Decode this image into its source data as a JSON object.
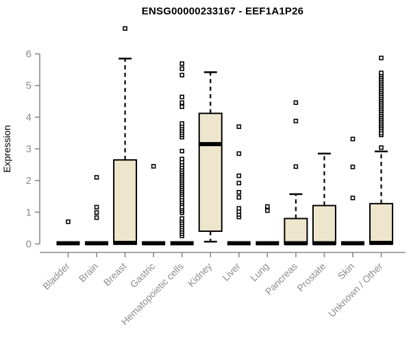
{
  "chart_data": {
    "type": "boxplot",
    "title": "ENSG00000233167 - EEF1A1P26",
    "ylabel": "Expression",
    "ylim": [
      0,
      6
    ],
    "yticks": [
      0,
      1,
      2,
      3,
      4,
      5,
      6
    ],
    "grid": false,
    "legend": false,
    "categories": [
      "Bladder",
      "Brain",
      "Breast",
      "Gastric",
      "Hematopoietic cells",
      "Kidney",
      "Liver",
      "Lung",
      "Pancreas",
      "Prostate",
      "Skin",
      "Unknown / Other"
    ],
    "colors": {
      "box_fill": "#EDE6CD",
      "box_border": "#000000",
      "median": "#000000",
      "whisker": "#000000",
      "outlier_stroke": "#000000",
      "outlier_fill": "#FFFFFF",
      "axis": "#888888",
      "tick_label": "#8C8C8C",
      "title": "#000000",
      "background": "#FFFFFF"
    },
    "boxes": [
      {
        "category": "Bladder",
        "q1": 0,
        "median": 0.02,
        "q3": 0,
        "whisker_low": 0,
        "whisker_high": 0,
        "outliers": [
          0.7
        ]
      },
      {
        "category": "Brain",
        "q1": 0,
        "median": 0.02,
        "q3": 0,
        "whisker_low": 0,
        "whisker_high": 0,
        "outliers": [
          0.83,
          0.99,
          1.16,
          2.1
        ]
      },
      {
        "category": "Breast",
        "q1": 0,
        "median": 0.03,
        "q3": 2.65,
        "whisker_low": 0,
        "whisker_high": 5.85,
        "outliers": [
          6.8
        ]
      },
      {
        "category": "Gastric",
        "q1": 0,
        "median": 0.02,
        "q3": 0,
        "whisker_low": 0,
        "whisker_high": 0,
        "outliers": [
          2.45
        ]
      },
      {
        "category": "Hematopoietic cells",
        "q1": 0,
        "median": 0.02,
        "q3": 0,
        "whisker_low": 0,
        "whisker_high": 0,
        "outliers": [
          0.25,
          0.32,
          0.39,
          0.46,
          0.53,
          0.6,
          0.67,
          0.74,
          0.8,
          0.98,
          1.04,
          1.1,
          1.16,
          1.27,
          1.33,
          1.4,
          1.48,
          1.56,
          1.62,
          1.68,
          1.74,
          1.8,
          1.86,
          1.92,
          1.98,
          2.04,
          2.1,
          2.16,
          2.22,
          2.28,
          2.35,
          2.42,
          2.5,
          2.58,
          2.68,
          2.93,
          3.37,
          3.44,
          3.51,
          3.58,
          3.65,
          3.72,
          3.8,
          4.33,
          4.46,
          4.64,
          5.33,
          5.53,
          5.69
        ]
      },
      {
        "category": "Kidney",
        "q1": 0.4,
        "median": 3.15,
        "q3": 4.12,
        "whisker_low": 0.07,
        "whisker_high": 5.42,
        "outliers": []
      },
      {
        "category": "Liver",
        "q1": 0,
        "median": 0.02,
        "q3": 0,
        "whisker_low": 0,
        "whisker_high": 0,
        "outliers": [
          0.85,
          0.93,
          1.02,
          1.12,
          1.47,
          1.63,
          1.92,
          2.15,
          2.85,
          3.7
        ]
      },
      {
        "category": "Lung",
        "q1": 0,
        "median": 0.02,
        "q3": 0,
        "whisker_low": 0,
        "whisker_high": 0,
        "outliers": [
          1.05,
          1.18
        ]
      },
      {
        "category": "Pancreas",
        "q1": 0,
        "median": 0.02,
        "q3": 0.8,
        "whisker_low": 0,
        "whisker_high": 1.57,
        "outliers": [
          2.44,
          3.88,
          4.46
        ]
      },
      {
        "category": "Prostate",
        "q1": 0,
        "median": 0.02,
        "q3": 1.21,
        "whisker_low": 0,
        "whisker_high": 2.85,
        "outliers": []
      },
      {
        "category": "Skin",
        "q1": 0,
        "median": 0.02,
        "q3": 0,
        "whisker_low": 0,
        "whisker_high": 0,
        "outliers": [
          1.45,
          2.43,
          3.31
        ]
      },
      {
        "category": "Unknown / Other",
        "q1": 0,
        "median": 0.03,
        "q3": 1.27,
        "whisker_low": 0,
        "whisker_high": 2.92,
        "outliers": [
          3.04,
          3.44,
          3.5,
          3.59,
          3.66,
          3.72,
          3.78,
          3.84,
          3.9,
          3.96,
          4.02,
          4.08,
          4.14,
          4.2,
          4.26,
          4.32,
          4.38,
          4.44,
          4.5,
          4.56,
          4.62,
          4.68,
          4.74,
          4.8,
          4.86,
          4.92,
          4.98,
          5.04,
          5.1,
          5.16,
          5.22,
          5.28,
          5.34,
          5.4,
          5.87
        ]
      }
    ]
  }
}
